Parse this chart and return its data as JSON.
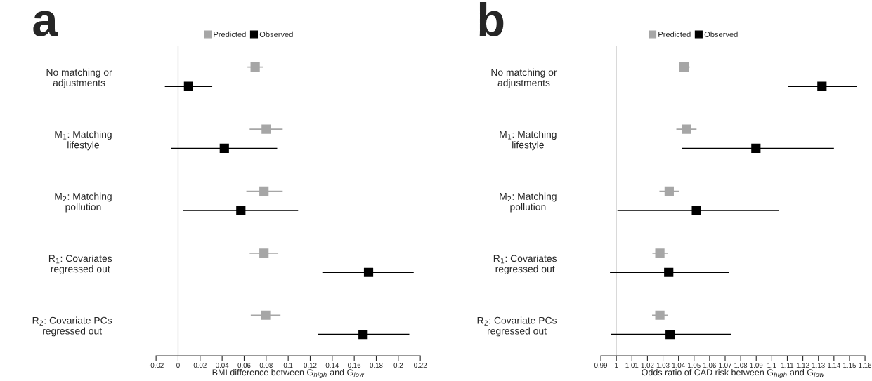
{
  "chart_data": [
    {
      "type": "scatter",
      "orientation": "horizontal",
      "title": "a",
      "xlabel": "BMI difference between G$_{high}$ and G$_{low}$",
      "categories": [
        "No matching or\nadjustments",
        "M$_{1}$: Matching\nlifestyle",
        "M$_{2}$: Matching\npollution",
        "R$_{1}$: Covariates\nregressed out",
        "R$_{2}$: Covariate PCs\nregressed out"
      ],
      "series": [
        {
          "name": "Predicted",
          "color": "#a6a6a6",
          "values": [
            0.07,
            0.08,
            0.078,
            0.078,
            0.0795
          ],
          "errors": [
            [
              0.063,
              0.077
            ],
            [
              0.065,
              0.095
            ],
            [
              0.062,
              0.095
            ],
            [
              0.065,
              0.091
            ],
            [
              0.066,
              0.093
            ]
          ]
        },
        {
          "name": "Observed",
          "color": "#000000",
          "values": [
            0.0095,
            0.042,
            0.057,
            0.173,
            0.168
          ],
          "errors": [
            [
              -0.012,
              0.031
            ],
            [
              -0.0065,
              0.09
            ],
            [
              0.0046,
              0.109
            ],
            [
              0.131,
              0.214
            ],
            [
              0.127,
              0.21
            ]
          ]
        }
      ],
      "xlim": [
        -0.02,
        0.22
      ],
      "xticks": [
        -0.02,
        0,
        0.02,
        0.04,
        0.06,
        0.08,
        0.1,
        0.12,
        0.14,
        0.16,
        0.18,
        0.2,
        0.22
      ],
      "ref_lines": [
        {
          "axis": "x",
          "value": 0,
          "color": "#d3d3d3"
        }
      ],
      "marker": "square",
      "legend": "top",
      "grid": false
    },
    {
      "type": "scatter",
      "orientation": "horizontal",
      "title": "b",
      "xlabel": "Odds ratio of CAD risk between G$_{high}$ and G$_{low}$",
      "categories": [
        "No matching or\nadjustments",
        "M$_{1}$: Matching\nlifestyle",
        "M$_{2}$: Matching\npollution",
        "R$_{1}$: Covariates\nregressed out",
        "R$_{2}$: Covariate PCs\nregressed out"
      ],
      "series": [
        {
          "name": "Predicted",
          "color": "#a6a6a6",
          "values": [
            1.0436,
            1.045,
            1.034,
            1.028,
            1.028
          ],
          "errors": [
            [
              1.0404,
              1.0472
            ],
            [
              1.0386,
              1.0516
            ],
            [
              1.0277,
              1.0404
            ],
            [
              1.0232,
              1.0332
            ],
            [
              1.023,
              1.033
            ]
          ]
        },
        {
          "name": "Observed",
          "color": "#000000",
          "values": [
            1.1323,
            1.0898,
            1.0515,
            1.0337,
            1.0346
          ],
          "errors": [
            [
              1.1105,
              1.1547
            ],
            [
              1.042,
              1.14
            ],
            [
              1.0007,
              1.1046
            ],
            [
              0.9959,
              1.0727
            ],
            [
              0.9966,
              1.074
            ]
          ]
        }
      ],
      "xlim": [
        0.99,
        1.16
      ],
      "xticks": [
        0.99,
        1,
        1.01,
        1.02,
        1.03,
        1.04,
        1.05,
        1.06,
        1.07,
        1.08,
        1.09,
        1.1,
        1.11,
        1.12,
        1.13,
        1.14,
        1.15,
        1.16
      ],
      "ref_lines": [
        {
          "axis": "x",
          "value": 1,
          "color": "#d3d3d3"
        }
      ],
      "marker": "square",
      "legend": "top",
      "grid": false
    }
  ]
}
